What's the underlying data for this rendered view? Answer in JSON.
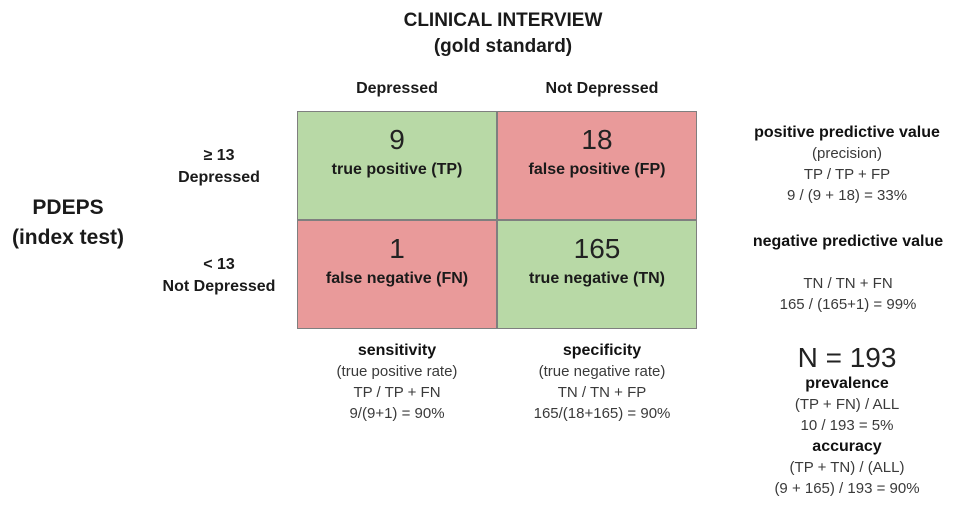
{
  "header": {
    "title_line1": "CLINICAL INTERVIEW",
    "title_line2": "(gold standard)",
    "col_depressed": "Depressed",
    "col_not_depressed": "Not Depressed"
  },
  "rows": {
    "index_line1": "PDEPS",
    "index_line2": "(index test)",
    "row1_line1": "≥ 13",
    "row1_line2": "Depressed",
    "row2_line1": "< 13",
    "row2_line2": "Not Depressed"
  },
  "matrix": {
    "tp": {
      "value": "9",
      "label": "true positive (TP)"
    },
    "fp": {
      "value": "18",
      "label": "false positive (FP)"
    },
    "fn": {
      "value": "1",
      "label": "false negative (FN)"
    },
    "tn": {
      "value": "165",
      "label": "true negative (TN)"
    }
  },
  "colors": {
    "correct": "#b8d9a6",
    "error": "#e99a9a"
  },
  "sensitivity": {
    "title": "sensitivity",
    "subtitle": "(true positive rate)",
    "formula": "TP / TP + FN",
    "result": "9/(9+1) = 90%"
  },
  "specificity": {
    "title": "specificity",
    "subtitle": "(true negative rate)",
    "formula": "TN / TN + FP",
    "result": "165/(18+165) = 90%"
  },
  "ppv": {
    "title": "positive predictive value",
    "subtitle": "(precision)",
    "formula": "TP / TP + FP",
    "result": "9 / (9 + 18) = 33%"
  },
  "npv": {
    "title": "negative predictive value",
    "formula": "TN / TN + FN",
    "result": "165 / (165+1) = 99%"
  },
  "summary": {
    "n": "N = 193",
    "prevalence_title": "prevalence",
    "prevalence_formula": "(TP + FN) / ALL",
    "prevalence_result": "10 / 193 = 5%",
    "accuracy_title": "accuracy",
    "accuracy_formula": "(TP + TN) / (ALL)",
    "accuracy_result": "(9 + 165) / 193 = 90%"
  }
}
